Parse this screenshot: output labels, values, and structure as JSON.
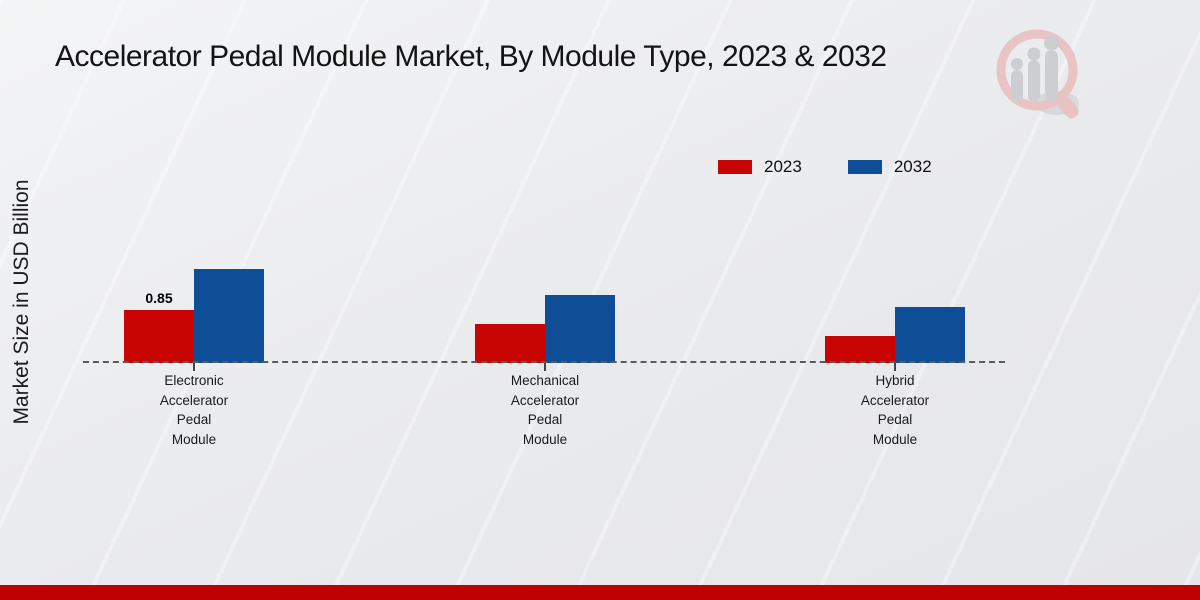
{
  "page": {
    "title": "Accelerator Pedal Module Market, By Module Type, 2023 & 2032"
  },
  "legend": {
    "items": [
      {
        "label": "2023",
        "color": "#c90504"
      },
      {
        "label": "2032",
        "color": "#0d4e96"
      }
    ]
  },
  "chart_data": {
    "type": "bar",
    "title": "Accelerator Pedal Module Market, By Module Type, 2023 & 2032",
    "xlabel": "",
    "ylabel": "Market Size in USD Billion",
    "categories": [
      "Electronic\nAccelerator\nPedal\nModule",
      "Mechanical\nAccelerator\nPedal\nModule",
      "Hybrid\nAccelerator\nPedal\nModule"
    ],
    "series": [
      {
        "name": "2023",
        "color": "#c90504",
        "values": [
          0.85,
          0.63,
          0.43
        ]
      },
      {
        "name": "2032",
        "color": "#0d4e96",
        "values": [
          1.51,
          1.09,
          0.9
        ]
      }
    ],
    "annotations": [
      {
        "series_index": 0,
        "category_index": 0,
        "text": "0.85"
      }
    ],
    "baseline": "dashed-zero-line",
    "grid": "off",
    "legend_position": "top-right"
  },
  "branding": {
    "logo_name": "market-research-growth-magnifier-logo",
    "footer_color": "#bf0101",
    "logo_ring_color": "#e8c2c2",
    "logo_bar_color": "#ccced2"
  }
}
